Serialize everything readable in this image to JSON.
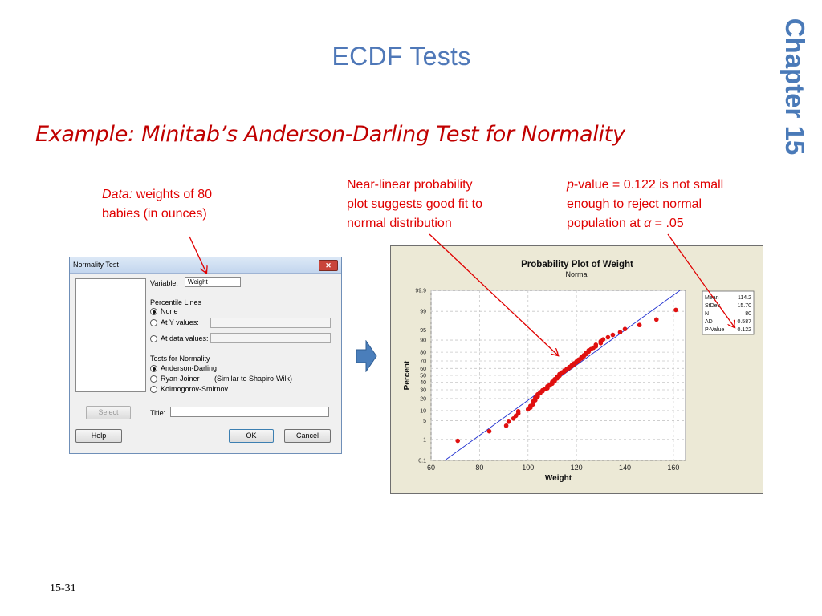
{
  "slide": {
    "title": "ECDF Tests",
    "chapter": "Chapter 15",
    "subtitle": "Example: Minitab’s Anderson-Darling Test for Normality",
    "page_number": "15-31"
  },
  "notes": {
    "data_label": "Data:",
    "data_text_1": "weights of 80",
    "data_text_2": "babies (in ounces)",
    "linear_1": "Near-linear probability",
    "linear_2": "plot suggests good fit to",
    "linear_3": "normal distribution",
    "pval_p": "p",
    "pval_1": "-value = 0.122 is not small",
    "pval_2": "enough to reject normal",
    "pval_3a": "population at ",
    "pval_alpha": "α",
    "pval_3b": " = .05"
  },
  "dialog": {
    "title": "Normality Test",
    "close": "✕",
    "variable_label": "Variable:",
    "variable_value": "Weight",
    "percentile_heading": "Percentile Lines",
    "percentile_options": [
      "None",
      "At Y values:",
      "At data values:"
    ],
    "percentile_selected": "None",
    "tests_heading": "Tests for Normality",
    "test_options": [
      "Anderson-Darling",
      "Ryan-Joiner",
      "Kolmogorov-Smirnov"
    ],
    "test_selected": "Anderson-Darling",
    "ryan_note": "(Similar to Shapiro-Wilk)",
    "title_label": "Title:",
    "title_value": "",
    "select_button": "Select",
    "help_button": "Help",
    "ok_button": "OK",
    "cancel_button": "Cancel"
  },
  "colors": {
    "accent_blue": "#4f78b8",
    "annotation_red": "#e00000",
    "point_red": "#e01010",
    "fit_line": "#2030d0"
  },
  "chart_data": {
    "type": "scatter",
    "title": "Probability Plot of Weight",
    "subtitle": "Normal",
    "xlabel": "Weight",
    "ylabel": "Percent",
    "xlim": [
      60,
      165
    ],
    "yscale": "normal-probability",
    "xticks": [
      60,
      80,
      100,
      120,
      140,
      160
    ],
    "yticks": [
      0.1,
      1,
      5,
      10,
      20,
      30,
      40,
      50,
      60,
      70,
      80,
      90,
      95,
      99,
      99.9
    ],
    "grid": true,
    "fit_line": {
      "mean": 114.2,
      "stdev": 15.7
    },
    "stats": [
      {
        "label": "Mean",
        "value": "114.2"
      },
      {
        "label": "StDev",
        "value": "15.70"
      },
      {
        "label": "N",
        "value": "80"
      },
      {
        "label": "AD",
        "value": "0.587"
      },
      {
        "label": "P-Value",
        "value": "0.122"
      }
    ],
    "points": [
      71,
      84,
      91,
      92,
      94,
      95,
      96,
      96,
      100,
      101,
      101,
      102,
      102,
      102,
      103,
      103,
      103,
      104,
      104,
      104,
      105,
      105,
      106,
      106,
      107,
      108,
      108,
      108,
      109,
      109,
      110,
      110,
      110,
      111,
      111,
      111,
      112,
      112,
      112,
      113,
      113,
      113,
      114,
      114,
      115,
      115,
      116,
      116,
      117,
      117,
      118,
      118,
      119,
      119,
      120,
      120,
      121,
      121,
      122,
      122,
      123,
      123,
      124,
      124,
      125,
      125,
      126,
      127,
      128,
      128,
      130,
      130,
      131,
      133,
      135,
      138,
      140,
      146,
      153,
      161
    ]
  }
}
